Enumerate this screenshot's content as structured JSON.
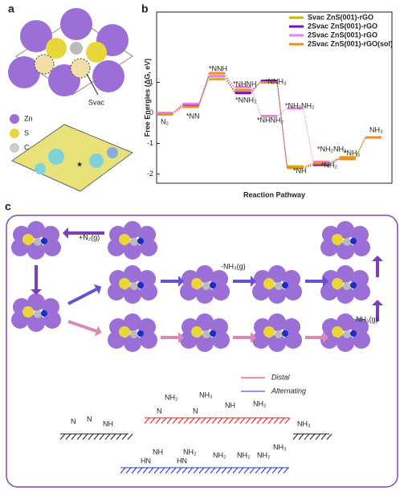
{
  "panel_a": {
    "label": "a",
    "legend": [
      "Zn",
      "S",
      "C"
    ],
    "annotation": "Svac"
  },
  "chart_data": {
    "type": "step",
    "label": "b",
    "ylabel": "Free Energies (ΔG, eV)",
    "xlabel": "Reaction Pathway",
    "categories": [
      null,
      null,
      null,
      null,
      null,
      null,
      null,
      null,
      null
    ],
    "ylim": [
      -2.3,
      3.3
    ],
    "yticks": [
      -2,
      -1,
      0,
      1
    ],
    "legend": "upper right",
    "series": [
      {
        "name": "Svac ZnS(001)-rGO",
        "color": "#c9b800",
        "values": [
          0,
          0.2,
          1.1,
          0.72,
          1.0,
          -1.75,
          -1.65,
          -1.45,
          -0.8
        ]
      },
      {
        "name": "2Svac ZnS(001)-rGO",
        "color": "#6a12d8",
        "values": [
          0,
          0.25,
          1.2,
          0.65,
          1.05,
          -1.8,
          -1.7,
          -1.5,
          -0.8
        ]
      },
      {
        "name": "2Svac ZnS(001)-rGO",
        "color": "#ec7fe6",
        "values": [
          0,
          0.3,
          1.2,
          0.85,
          -0.1,
          0.15,
          -1.6,
          -1.5,
          -0.8
        ]
      },
      {
        "name": "2Svac ZnS(001)-rGO(sol)",
        "color": "#f08a24",
        "values": [
          -0.05,
          0.2,
          1.3,
          0.75,
          1.0,
          -1.8,
          -1.65,
          -1.5,
          -0.8
        ]
      }
    ],
    "annotations": [
      "N₂",
      "*NN",
      "*NNH",
      "*NHNH",
      "*NNH₂",
      "*NNH₃",
      "*NHNH₂",
      "*NH₂NH₂",
      "*NH",
      "*NH₂NH₂",
      "*NH₂",
      "*NH₃",
      "NH₃"
    ]
  },
  "panel_c": {
    "label": "c",
    "steps": [
      "+N₂(g)",
      "-NH₃(g)",
      "-NH₃(g)"
    ],
    "legend": [
      "Distal",
      "Alternating"
    ],
    "surface_species": [
      "N",
      "N",
      "NH"
    ],
    "distal_species": [
      "NH₂",
      "N",
      "NH₃",
      "N",
      "NH",
      "NH₂"
    ],
    "alternating_species": [
      "HN",
      "NH",
      "HN",
      "NH₂",
      "NH₂",
      "NH₂",
      "NH₂",
      "NH₃"
    ],
    "product": "NH₃"
  }
}
